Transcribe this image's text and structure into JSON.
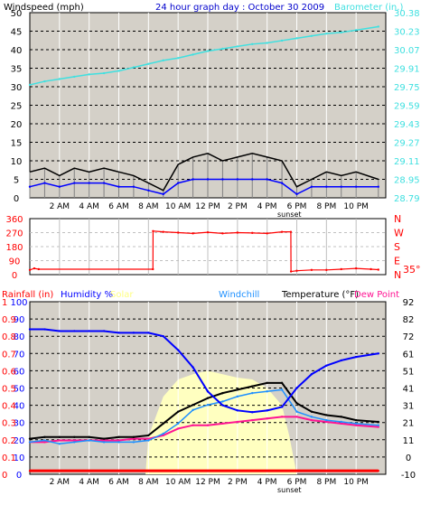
{
  "title": "24 hour graph day : October 30 2009",
  "colors": {
    "windspeed": "#000000",
    "windspeed_avg": "#0000ff",
    "windspeed_gust": "#808080",
    "barometer": "#40e0e0",
    "direction": "#ff0000",
    "rainfall": "#ff0000",
    "humidity": "#0000ff",
    "solar": "#ffffc0",
    "windchill": "#1e90ff",
    "temperature": "#000000",
    "dewpoint": "#ff1493",
    "panel_bg": "#d4d0c8"
  },
  "x_axis": {
    "labels": [
      "2 AM",
      "4 AM",
      "6 AM",
      "8 AM",
      "10 AM",
      "12 PM",
      "2 PM",
      "4 PM",
      "6 PM",
      "8 PM",
      "10 PM"
    ],
    "label_hours": [
      2,
      4,
      6,
      8,
      10,
      12,
      14,
      16,
      18,
      20,
      22
    ],
    "event_label": "sunset",
    "event_hour": 17.5,
    "range": [
      0,
      24
    ]
  },
  "chart_data": [
    {
      "type": "line",
      "panel": "wind-barometer",
      "left_axis_label": "Windspeed (mph)",
      "right_axis_label": "Barometer (in.)",
      "left_ticks": [
        "0",
        "5",
        "10",
        "15",
        "20",
        "25",
        "30",
        "35",
        "40",
        "45",
        "50"
      ],
      "right_ticks": [
        "28.79",
        "28.95",
        "29.11",
        "29.27",
        "29.43",
        "29.59",
        "29.75",
        "29.91",
        "30.07",
        "30.23",
        "30.38"
      ],
      "ylim_left": [
        0,
        50
      ],
      "ylim_right": [
        28.79,
        30.38
      ],
      "series": [
        {
          "name": "Barometer (in.)",
          "axis": "right",
          "x": [
            0,
            1,
            2,
            3,
            4,
            5,
            6,
            7,
            8,
            9,
            10,
            11,
            12,
            13,
            14,
            15,
            16,
            17,
            18,
            19,
            20,
            21,
            22,
            23.5
          ],
          "values": [
            29.76,
            29.79,
            29.81,
            29.83,
            29.85,
            29.86,
            29.88,
            29.91,
            29.94,
            29.97,
            29.99,
            30.02,
            30.05,
            30.07,
            30.09,
            30.11,
            30.12,
            30.14,
            30.16,
            30.18,
            30.2,
            30.21,
            30.23,
            30.26
          ]
        },
        {
          "role": "gust",
          "axis": "left",
          "x": [
            0,
            1,
            2,
            3,
            4,
            5,
            6,
            7,
            8,
            9,
            10,
            11,
            12,
            13,
            14,
            15,
            16,
            17,
            18,
            19,
            20,
            21,
            22,
            23.5
          ],
          "values": [
            7,
            8,
            6,
            8,
            7,
            8,
            7,
            6,
            4,
            2,
            9,
            11,
            12,
            10,
            11,
            12,
            11,
            10,
            3,
            5,
            7,
            6,
            7,
            5
          ]
        },
        {
          "role": "average",
          "axis": "left",
          "x": [
            0,
            1,
            2,
            3,
            4,
            5,
            6,
            7,
            8,
            9,
            10,
            11,
            12,
            13,
            14,
            15,
            16,
            17,
            18,
            19,
            20,
            21,
            22,
            23.5
          ],
          "values": [
            3,
            4,
            3,
            4,
            4,
            4,
            3,
            3,
            2,
            1,
            4,
            5,
            5,
            5,
            5,
            5,
            5,
            4,
            1,
            3,
            3,
            3,
            3,
            3
          ]
        }
      ]
    },
    {
      "type": "line",
      "panel": "wind-direction",
      "left_ticks": [
        "0",
        "90",
        "180",
        "270",
        "360"
      ],
      "right_ticks": [
        "N",
        "E",
        "S",
        "W",
        "N"
      ],
      "ylim": [
        0,
        360
      ],
      "side_label": "35°",
      "series": [
        {
          "role": "direction",
          "x": [
            0,
            0.3,
            0.6,
            8.3,
            8.31,
            9,
            10,
            11,
            12,
            13,
            14,
            15,
            16,
            17,
            17.6,
            17.61,
            18,
            19,
            20,
            21,
            22,
            23,
            23.5
          ],
          "values": [
            30,
            40,
            35,
            35,
            280,
            275,
            270,
            265,
            272,
            265,
            270,
            268,
            265,
            275,
            275,
            20,
            25,
            30,
            30,
            35,
            40,
            35,
            32
          ]
        }
      ]
    },
    {
      "type": "line",
      "panel": "temperature-humidity",
      "left_axis_label": "Rainfall (in)",
      "right_axis_label": "Temperature (°F)",
      "legend": [
        "Humidity %",
        "Solar",
        "Windchill",
        "Temperature (°F)",
        "Dew Point"
      ],
      "left_ticks": [
        "0",
        "10",
        "20",
        "30",
        "40",
        "50",
        "60",
        "70",
        "80",
        "90",
        "100"
      ],
      "left_ticks_2": [
        "0",
        "0.1",
        "0.2",
        "0.3",
        "0.4",
        "0.5",
        "0.6",
        "0.7",
        "0.8",
        "0.9",
        "1"
      ],
      "right_ticks": [
        "-10",
        "0",
        "11",
        "21",
        "31",
        "41",
        "51",
        "61",
        "72",
        "82",
        "92"
      ],
      "ylim_left": [
        0,
        100
      ],
      "ylim_right": [
        -10,
        92
      ],
      "series": [
        {
          "name": "Humidity %",
          "axis": "left",
          "x": [
            0,
            1,
            2,
            3,
            4,
            5,
            6,
            7,
            8,
            9,
            10,
            11,
            12,
            13,
            14,
            15,
            16,
            17,
            18,
            19,
            20,
            21,
            22,
            23.5
          ],
          "values": [
            84,
            84,
            83,
            83,
            83,
            83,
            82,
            82,
            82,
            80,
            72,
            62,
            48,
            40,
            37,
            36,
            37,
            39,
            50,
            58,
            63,
            66,
            68,
            70
          ]
        },
        {
          "name": "Solar",
          "axis": "left",
          "x": [
            0,
            1,
            2,
            3,
            4,
            5,
            6,
            7,
            7.8,
            8,
            9,
            10,
            11,
            12,
            13,
            14,
            15,
            16,
            17,
            17.5,
            18,
            19,
            20,
            21,
            22,
            23.5
          ],
          "values": [
            0,
            0,
            0,
            0,
            0,
            0,
            0,
            0,
            0,
            22,
            45,
            55,
            58,
            60,
            58,
            56,
            55,
            50,
            40,
            22,
            0,
            0,
            0,
            0,
            0,
            0
          ]
        },
        {
          "name": "Windchill",
          "axis": "right",
          "x": [
            0,
            1,
            2,
            3,
            4,
            5,
            6,
            7,
            8,
            9,
            10,
            11,
            12,
            13,
            14,
            15,
            16,
            17,
            18,
            19,
            20,
            21,
            22,
            23.5
          ],
          "values": [
            9,
            10,
            8,
            9,
            10,
            9,
            9,
            9,
            10,
            14,
            20,
            28,
            31,
            33,
            36,
            38,
            39,
            40,
            27,
            24,
            22,
            21,
            20,
            19
          ]
        },
        {
          "name": "Temperature (°F)",
          "axis": "right",
          "x": [
            0,
            1,
            2,
            3,
            4,
            5,
            6,
            7,
            8,
            9,
            10,
            11,
            12,
            13,
            14,
            15,
            16,
            17,
            18,
            19,
            20,
            21,
            22,
            23.5
          ],
          "values": [
            11,
            12,
            12,
            12,
            12,
            11,
            12,
            12,
            13,
            20,
            27,
            31,
            35,
            38,
            40,
            42,
            44,
            44,
            32,
            27,
            25,
            24,
            22,
            21
          ]
        },
        {
          "name": "Dew Point",
          "axis": "right",
          "x": [
            0,
            1,
            2,
            3,
            4,
            5,
            6,
            7,
            8,
            9,
            10,
            11,
            12,
            13,
            14,
            15,
            16,
            17,
            18,
            19,
            20,
            21,
            22,
            23.5
          ],
          "values": [
            9,
            9,
            10,
            10,
            10,
            10,
            10,
            11,
            11,
            13,
            17,
            19,
            19,
            20,
            21,
            22,
            23,
            24,
            24,
            22,
            21,
            20,
            19,
            18
          ]
        },
        {
          "name": "Rainfall (in)",
          "axis": "left2",
          "x": [
            0,
            23.5
          ],
          "values": [
            0.02,
            0.02
          ]
        }
      ]
    }
  ]
}
